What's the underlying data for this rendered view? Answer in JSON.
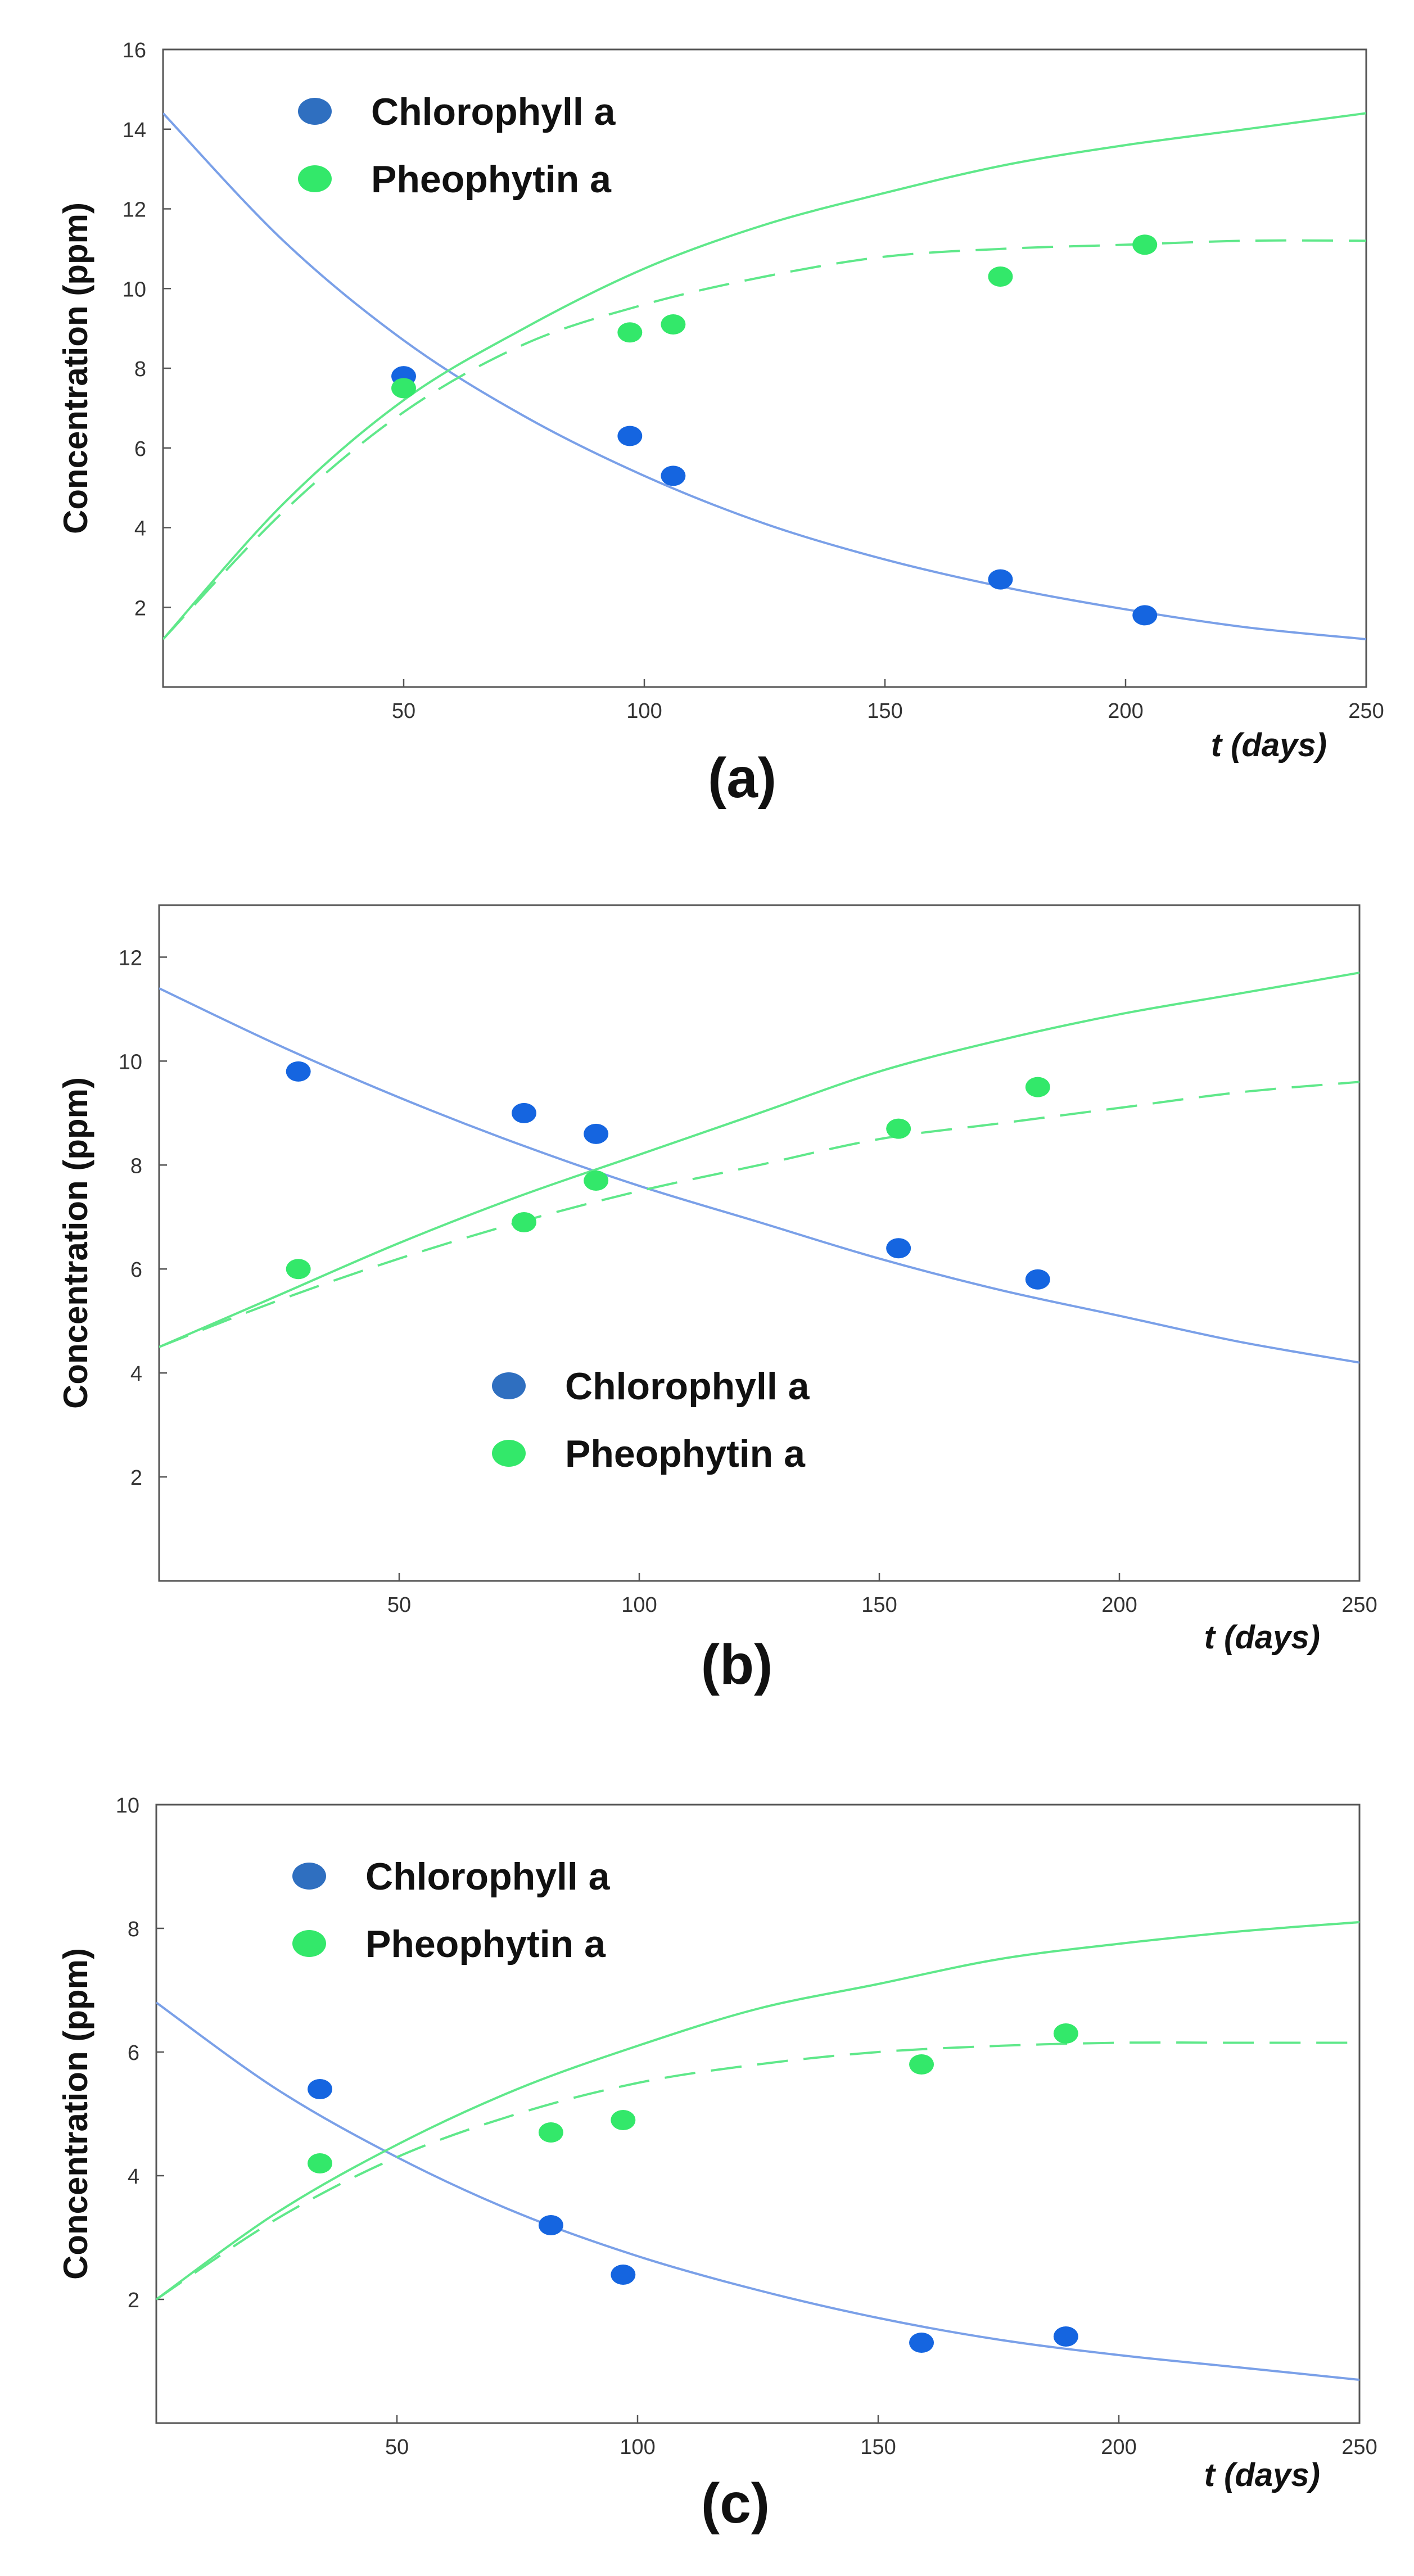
{
  "chart_data": [
    {
      "type": "scatter",
      "panel_label": "(a)",
      "xlabel": "t (days)",
      "ylabel": "Concentration  (ppm)",
      "xlim": [
        0,
        250
      ],
      "ylim": [
        0,
        16
      ],
      "xticks": [
        50,
        100,
        150,
        200,
        250
      ],
      "yticks": [
        2,
        4,
        6,
        8,
        10,
        12,
        14,
        16
      ],
      "legend_position": "top-left",
      "series": [
        {
          "name": "Chlorophyll a",
          "color": "#1565e0",
          "x": [
            50,
            97,
            106,
            174,
            204
          ],
          "y": [
            7.8,
            6.3,
            5.3,
            2.7,
            1.8
          ]
        },
        {
          "name": "Pheophytin a",
          "color": "#33e86a",
          "x": [
            50,
            97,
            106,
            174,
            204
          ],
          "y": [
            7.5,
            8.9,
            9.1,
            10.3,
            11.1
          ]
        }
      ],
      "fits": [
        {
          "series": "Chlorophyll a",
          "style": "solid",
          "color": "#7aa0e8",
          "x": [
            0,
            25,
            50,
            75,
            100,
            125,
            150,
            175,
            200,
            225,
            250
          ],
          "y": [
            14.4,
            11.2,
            8.7,
            6.8,
            5.3,
            4.1,
            3.2,
            2.5,
            1.95,
            1.5,
            1.2
          ]
        },
        {
          "series": "Pheophytin a",
          "style": "solid",
          "color": "#5fe88a",
          "x": [
            0,
            25,
            50,
            75,
            100,
            125,
            150,
            175,
            200,
            225,
            250
          ],
          "y": [
            1.2,
            4.6,
            7.2,
            9.0,
            10.5,
            11.6,
            12.4,
            13.1,
            13.6,
            14.0,
            14.4
          ]
        },
        {
          "series": "Pheophytin a",
          "style": "dashed",
          "color": "#5fe88a",
          "x": [
            0,
            25,
            50,
            75,
            100,
            125,
            150,
            175,
            200,
            225,
            250
          ],
          "y": [
            1.2,
            4.4,
            6.9,
            8.6,
            9.6,
            10.3,
            10.8,
            11.0,
            11.1,
            11.2,
            11.2
          ]
        }
      ]
    },
    {
      "type": "scatter",
      "panel_label": "(b)",
      "xlabel": "t (days)",
      "ylabel": "Concentration  (ppm)",
      "xlim": [
        0,
        250
      ],
      "ylim": [
        0,
        13
      ],
      "xticks": [
        50,
        100,
        150,
        200,
        250
      ],
      "yticks": [
        2,
        4,
        6,
        8,
        10,
        12
      ],
      "legend_position": "center",
      "series": [
        {
          "name": "Chlorophyll a",
          "color": "#1565e0",
          "x": [
            29,
            76,
            91,
            154,
            183
          ],
          "y": [
            9.8,
            9.0,
            8.6,
            6.4,
            5.8
          ]
        },
        {
          "name": "Pheophytin a",
          "color": "#33e86a",
          "x": [
            29,
            76,
            91,
            154,
            183
          ],
          "y": [
            6.0,
            6.9,
            7.7,
            8.7,
            9.5
          ]
        }
      ],
      "fits": [
        {
          "series": "Chlorophyll a",
          "style": "solid",
          "color": "#7aa0e8",
          "x": [
            0,
            25,
            50,
            75,
            100,
            125,
            150,
            175,
            200,
            225,
            250
          ],
          "y": [
            11.4,
            10.3,
            9.3,
            8.4,
            7.6,
            6.9,
            6.2,
            5.6,
            5.1,
            4.6,
            4.2
          ]
        },
        {
          "series": "Pheophytin a",
          "style": "solid",
          "color": "#5fe88a",
          "x": [
            0,
            25,
            50,
            75,
            100,
            125,
            150,
            175,
            200,
            225,
            250
          ],
          "y": [
            4.5,
            5.5,
            6.5,
            7.4,
            8.2,
            9.0,
            9.8,
            10.4,
            10.9,
            11.3,
            11.7
          ]
        },
        {
          "series": "Pheophytin a",
          "style": "dashed",
          "color": "#5fe88a",
          "x": [
            0,
            25,
            50,
            75,
            100,
            125,
            150,
            175,
            200,
            225,
            250
          ],
          "y": [
            4.5,
            5.4,
            6.2,
            6.9,
            7.5,
            8.0,
            8.5,
            8.8,
            9.1,
            9.4,
            9.6
          ]
        }
      ]
    },
    {
      "type": "scatter",
      "panel_label": "(c)",
      "xlabel": "t (days)",
      "ylabel": "Concentration  (ppm)",
      "xlim": [
        0,
        250
      ],
      "ylim": [
        0,
        10
      ],
      "xticks": [
        50,
        100,
        150,
        200,
        250
      ],
      "yticks": [
        2,
        4,
        6,
        8,
        10
      ],
      "legend_position": "top-left",
      "series": [
        {
          "name": "Chlorophyll a",
          "color": "#1565e0",
          "x": [
            34,
            82,
            97,
            159,
            189
          ],
          "y": [
            5.4,
            3.2,
            2.4,
            1.3,
            1.4
          ]
        },
        {
          "name": "Pheophytin a",
          "color": "#33e86a",
          "x": [
            34,
            82,
            97,
            159,
            189
          ],
          "y": [
            4.2,
            4.7,
            4.9,
            5.8,
            6.3
          ]
        }
      ],
      "fits": [
        {
          "series": "Chlorophyll a",
          "style": "solid",
          "color": "#7aa0e8",
          "x": [
            0,
            25,
            50,
            75,
            100,
            125,
            150,
            175,
            200,
            225,
            250
          ],
          "y": [
            6.8,
            5.4,
            4.3,
            3.4,
            2.7,
            2.15,
            1.7,
            1.35,
            1.1,
            0.9,
            0.7
          ]
        },
        {
          "series": "Pheophytin a",
          "style": "solid",
          "color": "#5fe88a",
          "x": [
            0,
            25,
            50,
            75,
            100,
            125,
            150,
            175,
            200,
            225,
            250
          ],
          "y": [
            2.0,
            3.4,
            4.5,
            5.4,
            6.1,
            6.7,
            7.1,
            7.5,
            7.75,
            7.95,
            8.1
          ]
        },
        {
          "series": "Pheophytin a",
          "style": "dashed",
          "color": "#5fe88a",
          "x": [
            0,
            25,
            50,
            75,
            100,
            125,
            150,
            175,
            200,
            225,
            250
          ],
          "y": [
            2.0,
            3.3,
            4.3,
            5.0,
            5.5,
            5.8,
            6.0,
            6.1,
            6.15,
            6.15,
            6.15
          ]
        }
      ]
    }
  ]
}
